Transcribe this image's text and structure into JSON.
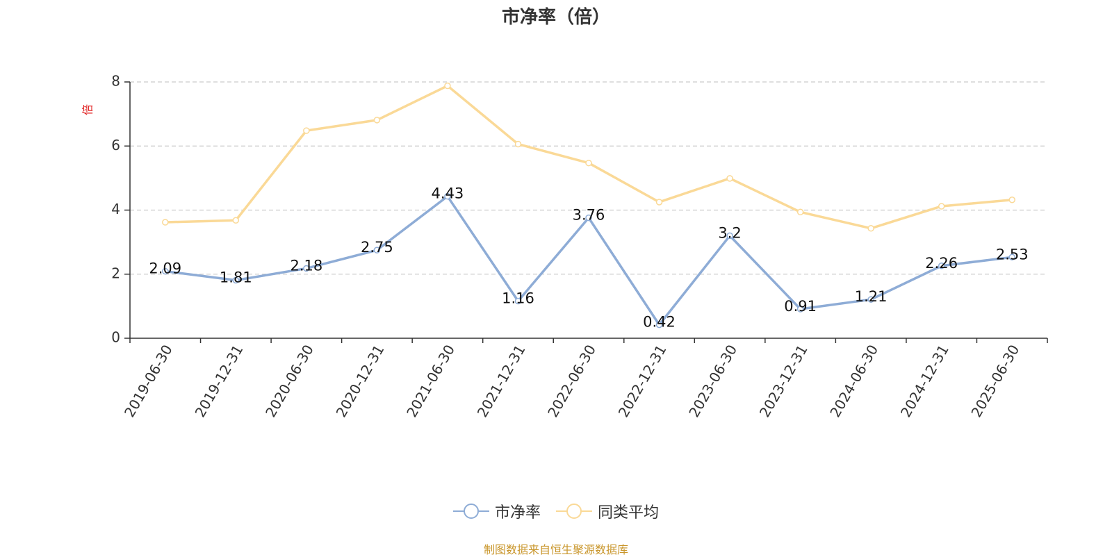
{
  "chart_data": {
    "type": "line",
    "title": "市净率（倍）",
    "ylabel": "倍",
    "xlabel": "",
    "ylim": [
      0,
      8
    ],
    "yticks": [
      0,
      2,
      4,
      6,
      8
    ],
    "grid": true,
    "legend_position": "bottom",
    "categories": [
      "2019-06-30",
      "2019-12-31",
      "2020-06-30",
      "2020-12-31",
      "2021-06-30",
      "2021-12-31",
      "2022-06-30",
      "2022-12-31",
      "2023-06-30",
      "2023-12-31",
      "2024-06-30",
      "2024-12-31",
      "2025-06-30"
    ],
    "series": [
      {
        "name": "市净率",
        "color": "#8eacd6",
        "show_labels": true,
        "values": [
          2.09,
          1.81,
          2.18,
          2.75,
          4.43,
          1.16,
          3.76,
          0.42,
          3.2,
          0.91,
          1.21,
          2.26,
          2.53
        ],
        "labels": [
          "2.09",
          "1.81",
          "2.18",
          "2.75",
          "4.43",
          "1.16",
          "3.76",
          "0.42",
          "3.2",
          "0.91",
          "1.21",
          "2.26",
          "2.53"
        ]
      },
      {
        "name": "同类平均",
        "color": "#fad997",
        "show_labels": false,
        "values": [
          3.62,
          3.68,
          6.48,
          6.81,
          7.88,
          6.06,
          5.47,
          4.25,
          4.99,
          3.94,
          3.43,
          4.12,
          4.32
        ]
      }
    ]
  },
  "source_text": "制图数据来自恒生聚源数据库",
  "colors": {
    "ylabel": "#e02020",
    "axis": "#333333",
    "grid": "#cccccc",
    "source": "#c9962b"
  }
}
